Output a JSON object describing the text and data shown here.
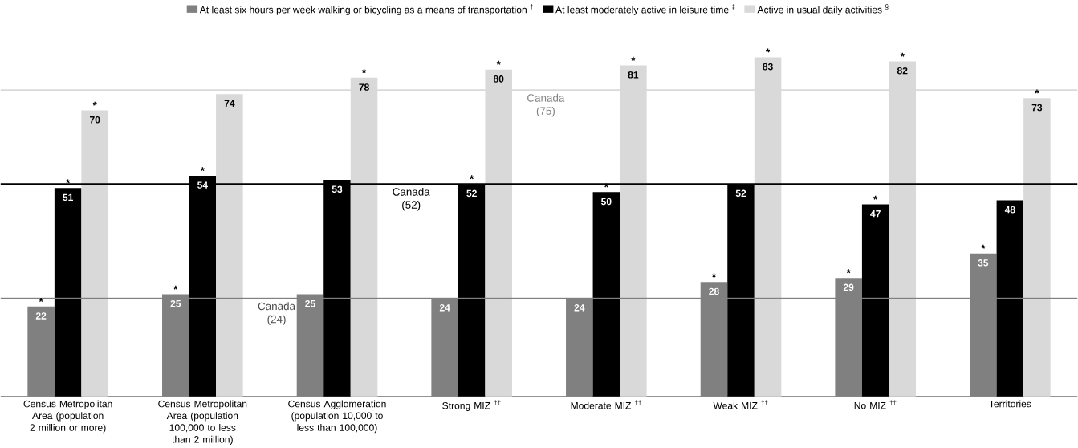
{
  "chart_data": {
    "type": "bar",
    "categories": [
      "Census Metropolitan Area (population 2 million or more)",
      "Census Metropolitan Area (population 100,000 to less than 2 million)",
      "Census Agglomeration (population 10,000 to less than 100,000)",
      "Strong MIZ $^{††}$",
      "Moderate MIZ $^{††}$",
      "Weak MIZ $^{††}$",
      "No MIZ $^{††}$",
      "Territories"
    ],
    "series": [
      {
        "name": "At least six hours per week walking or bicycling as a means of transportation $^{†}$",
        "color": "#808080",
        "values": [
          22,
          25,
          25,
          24,
          24,
          28,
          29,
          35
        ]
      },
      {
        "name": "At least moderately active in leisure time $^{‡}$",
        "color": "#000000",
        "values": [
          51,
          54,
          53,
          52,
          50,
          52,
          47,
          48
        ]
      },
      {
        "name": "Active in usual daily activities $^{§}$",
        "color": "#d9d9d9",
        "values": [
          70,
          74,
          78,
          80,
          81,
          83,
          82,
          73
        ]
      }
    ],
    "tick_labels": "x",
    "data_labels": true,
    "legend": "top",
    "ref_lines": [
      {
        "axis": "y",
        "value": 24,
        "label": "Canada (24)",
        "color": "#808080"
      },
      {
        "axis": "y",
        "value": 52,
        "label": "Canada (52)",
        "color": "#000000"
      },
      {
        "axis": "y",
        "value": 75,
        "label": "Canada (75)",
        "color": "#d9d9d9"
      }
    ],
    "annotations": [
      "*",
      "*",
      "*",
      "*",
      "*",
      "*",
      "*",
      "*",
      "*",
      "*",
      "*",
      "*",
      "*",
      "*",
      "*",
      "*",
      "*"
    ]
  }
}
